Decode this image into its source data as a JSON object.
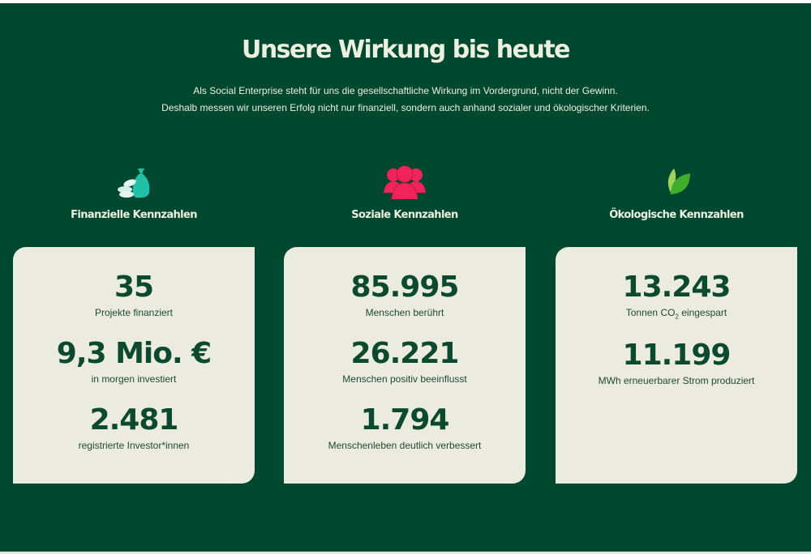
{
  "header": {
    "title": "Unsere Wirkung bis heute",
    "intro_line1": "Als Social Enterprise steht für uns die gesellschaftliche Wirkung im Vordergrund, nicht der Gewinn.",
    "intro_line2": "Deshalb messen wir unseren Erfolg nicht nur finanziell, sondern auch anhand sozialer und ökologischer Kriterien."
  },
  "columns": [
    {
      "title": "Finanzielle Kennzahlen",
      "icon": "money-bag-coins-icon",
      "color": "#1fc2a7",
      "metrics": [
        {
          "value": "35",
          "label": "Projekte finanziert"
        },
        {
          "value": "9,3 Mio. €",
          "label": "in morgen investiert"
        },
        {
          "value": "2.481",
          "label": "registrierte Investor*innen"
        }
      ]
    },
    {
      "title": "Soziale Kennzahlen",
      "icon": "people-group-icon",
      "color": "#f0245a",
      "metrics": [
        {
          "value": "85.995",
          "label": "Menschen berührt"
        },
        {
          "value": "26.221",
          "label": "Menschen positiv beeinflusst"
        },
        {
          "value": "1.794",
          "label": "Menschenleben deutlich verbessert"
        }
      ]
    },
    {
      "title": "Ökologische Kennzahlen",
      "icon": "leaf-icon",
      "color": "#3fae2a",
      "metrics": [
        {
          "value": "13.243",
          "label_pre": "Tonnen CO",
          "label_sub": "2",
          "label_post": " eingespart"
        },
        {
          "value": "11.199",
          "label": "MWh erneuerbarer Strom produziert"
        }
      ]
    }
  ]
}
